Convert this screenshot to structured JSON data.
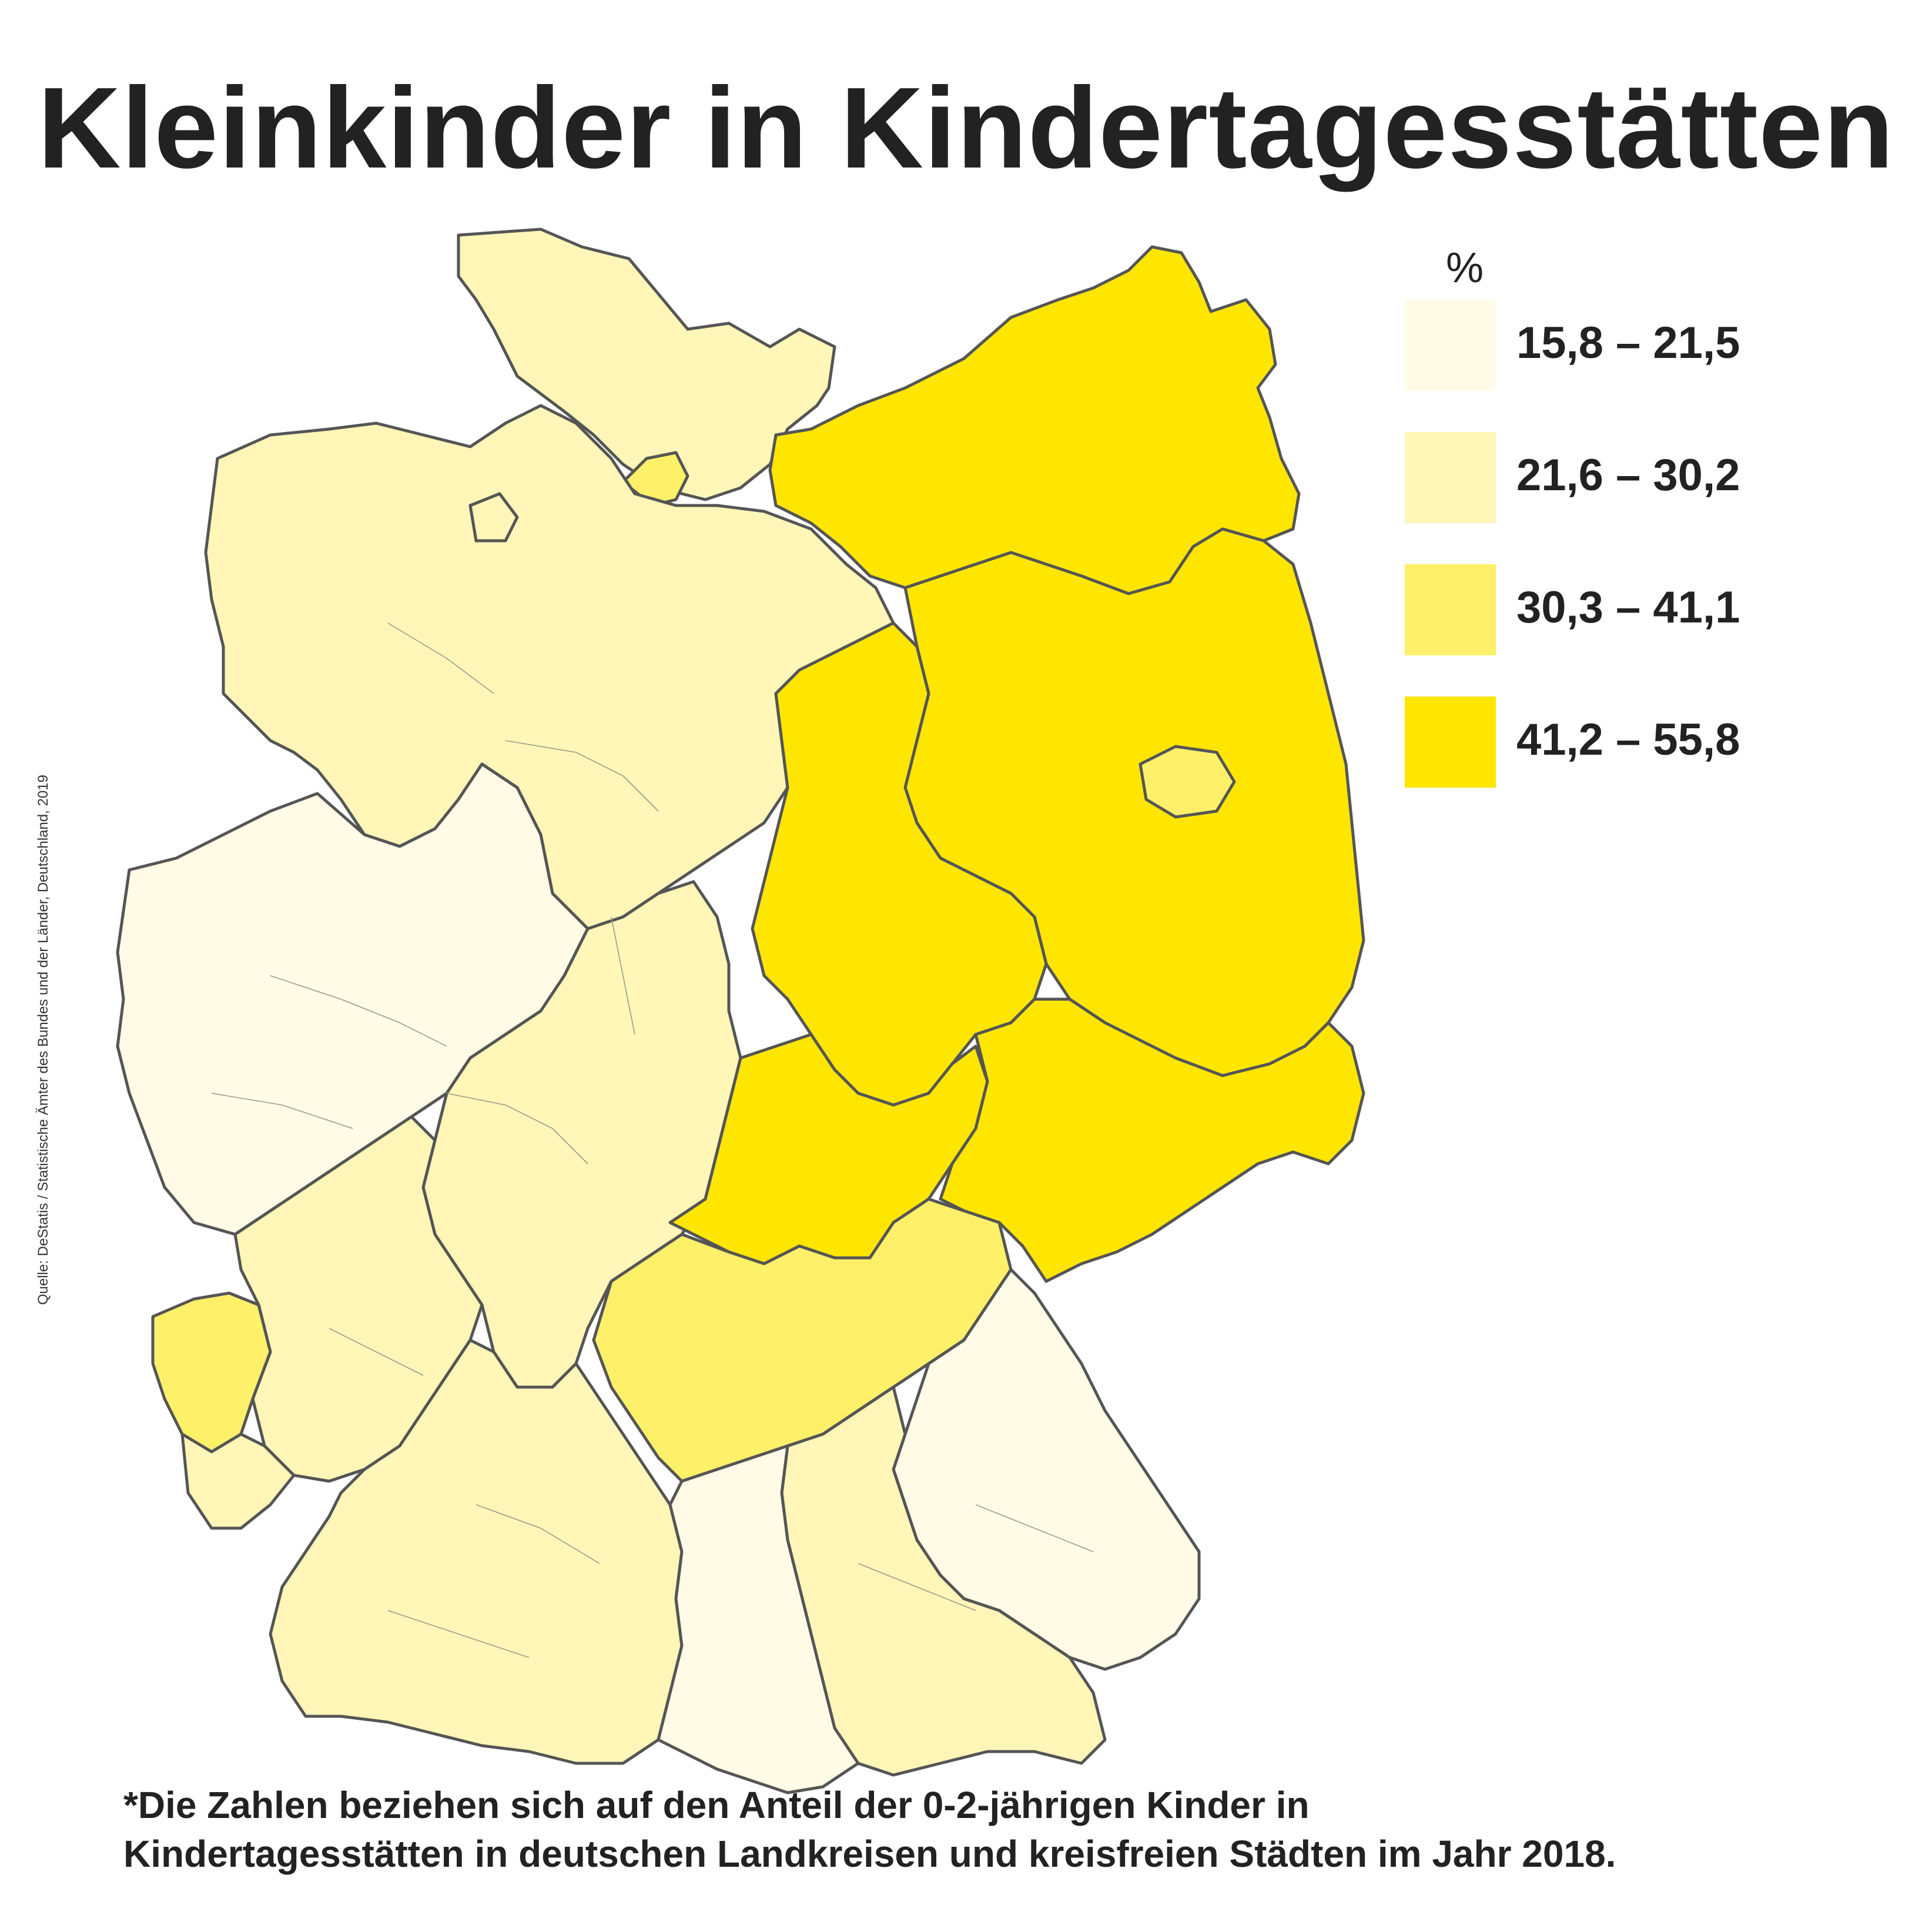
{
  "title": "Kleinkinder in Kindertagesstätten",
  "legend": {
    "unit": "%",
    "items": [
      {
        "label": "15,8 – 21,5",
        "color": "#fffbe6"
      },
      {
        "label": "21,6 – 30,2",
        "color": "#fff6b8"
      },
      {
        "label": "30,3 – 41,1",
        "color": "#fff06a"
      },
      {
        "label": "41,2 – 55,8",
        "color": "#ffe600"
      }
    ]
  },
  "source": "Quelle: DeStatis / Statistische Ämter des Bundes und der Länder, Deutschland, 2019",
  "footnote": {
    "line1": "*Die Zahlen beziehen sich auf den Anteil der 0-2-jährigen Kinder in",
    "line2": "Kindertagesstätten in deutschen Landkreisen und kreisfreien Städten im Jahr 2018."
  },
  "regions": [
    {
      "name": "schleswig-holstein",
      "class": 1
    },
    {
      "name": "hamburg",
      "class": 2
    },
    {
      "name": "mecklenburg-vorpommern",
      "class": 3
    },
    {
      "name": "niedersachsen",
      "class": 1
    },
    {
      "name": "bremen",
      "class": 1
    },
    {
      "name": "brandenburg",
      "class": 3
    },
    {
      "name": "berlin",
      "class": 2
    },
    {
      "name": "sachsen-anhalt",
      "class": 3
    },
    {
      "name": "nordrhein-westfalen",
      "class": 0
    },
    {
      "name": "hessen",
      "class": 1
    },
    {
      "name": "thueringen",
      "class": 3
    },
    {
      "name": "sachsen",
      "class": 3
    },
    {
      "name": "rheinland-pfalz",
      "class": 1
    },
    {
      "name": "trier-region",
      "class": 2
    },
    {
      "name": "saarland",
      "class": 1
    },
    {
      "name": "baden-wuerttemberg",
      "class": 1
    },
    {
      "name": "nordbayern",
      "class": 2
    },
    {
      "name": "bayern-ost",
      "class": 0
    },
    {
      "name": "bayern-sued",
      "class": 1
    },
    {
      "name": "schwaben",
      "class": 0
    }
  ]
}
